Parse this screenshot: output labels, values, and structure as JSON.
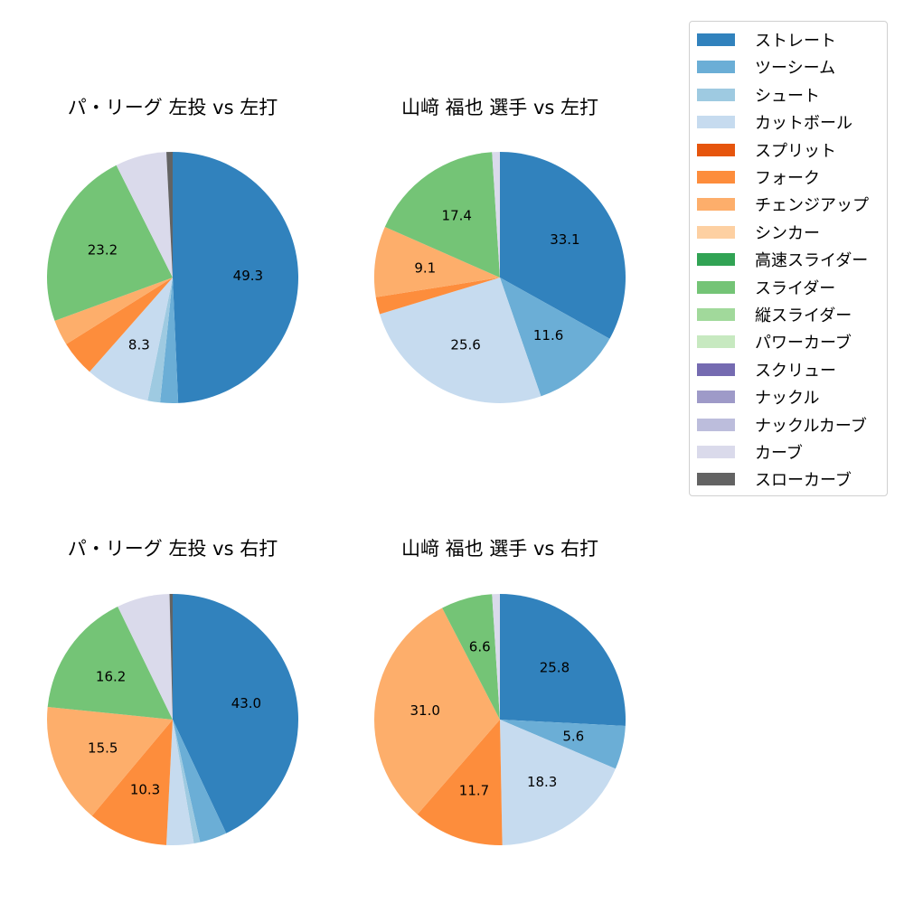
{
  "chart_data": [
    {
      "type": "pie",
      "title": "パ・リーグ 左投 vs 左打",
      "categories": [
        "ストレート",
        "ツーシーム",
        "シュート",
        "カットボール",
        "フォーク",
        "チェンジアップ",
        "スライダー",
        "カーブ",
        "スローカーブ"
      ],
      "values": [
        49.3,
        2.3,
        1.6,
        8.3,
        4.6,
        3.3,
        23.2,
        6.6,
        0.8
      ],
      "labels_shown": [
        "49.3",
        "8.3",
        "23.2"
      ],
      "start_angle": 90,
      "direction": "clockwise"
    },
    {
      "type": "pie",
      "title": "山﨑 福也 選手 vs 左打",
      "categories": [
        "ストレート",
        "ツーシーム",
        "カットボール",
        "フォーク",
        "チェンジアップ",
        "スライダー",
        "カーブ"
      ],
      "values": [
        33.1,
        11.6,
        25.6,
        2.2,
        9.1,
        17.4,
        1.0
      ],
      "labels_shown": [
        "33.1",
        "11.6",
        "25.6",
        "9.1",
        "17.4"
      ],
      "start_angle": 90,
      "direction": "clockwise"
    },
    {
      "type": "pie",
      "title": "パ・リーグ 左投 vs 右打",
      "categories": [
        "ストレート",
        "ツーシーム",
        "シュート",
        "カットボール",
        "フォーク",
        "チェンジアップ",
        "スライダー",
        "カーブ",
        "スローカーブ"
      ],
      "values": [
        43.0,
        3.5,
        0.8,
        3.5,
        10.3,
        15.5,
        16.2,
        6.8,
        0.4
      ],
      "labels_shown": [
        "43.0",
        "10.3",
        "15.5",
        "16.2"
      ],
      "start_angle": 90,
      "direction": "clockwise"
    },
    {
      "type": "pie",
      "title": "山﨑 福也 選手 vs 右打",
      "categories": [
        "ストレート",
        "ツーシーム",
        "カットボール",
        "フォーク",
        "チェンジアップ",
        "スライダー",
        "カーブ"
      ],
      "values": [
        25.8,
        5.6,
        18.3,
        11.7,
        31.0,
        6.6,
        1.0
      ],
      "labels_shown": [
        "25.8",
        "5.6",
        "18.3",
        "11.7",
        "31.0",
        "6.6"
      ],
      "start_angle": 90,
      "direction": "clockwise"
    }
  ],
  "legend": {
    "items": [
      {
        "label": "ストレート",
        "color": "#3182bd"
      },
      {
        "label": "ツーシーム",
        "color": "#6baed6"
      },
      {
        "label": "シュート",
        "color": "#9ecae1"
      },
      {
        "label": "カットボール",
        "color": "#c6dbef"
      },
      {
        "label": "スプリット",
        "color": "#e6550d"
      },
      {
        "label": "フォーク",
        "color": "#fd8d3c"
      },
      {
        "label": "チェンジアップ",
        "color": "#fdae6b"
      },
      {
        "label": "シンカー",
        "color": "#fdd0a2"
      },
      {
        "label": "高速スライダー",
        "color": "#31a354"
      },
      {
        "label": "スライダー",
        "color": "#74c476"
      },
      {
        "label": "縦スライダー",
        "color": "#a1d99b"
      },
      {
        "label": "パワーカーブ",
        "color": "#c7e9c0"
      },
      {
        "label": "スクリュー",
        "color": "#756bb1"
      },
      {
        "label": "ナックル",
        "color": "#9e9ac8"
      },
      {
        "label": "ナックルカーブ",
        "color": "#bcbddc"
      },
      {
        "label": "カーブ",
        "color": "#dadaeb"
      },
      {
        "label": "スローカーブ",
        "color": "#636363"
      }
    ]
  }
}
